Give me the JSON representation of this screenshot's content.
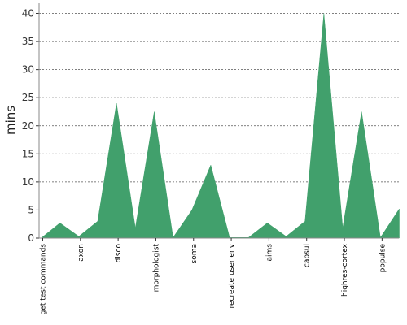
{
  "chart_data": {
    "type": "area",
    "ylabel": "mins",
    "xlabel": "",
    "ylim": [
      0,
      40
    ],
    "yticks": [
      0,
      5,
      10,
      15,
      20,
      25,
      30,
      35,
      40
    ],
    "grid": "horizontal-dashed",
    "fill_color": "#41a06c",
    "categories": [
      "get test commands",
      "axon",
      "disco",
      "morphologist",
      "soma",
      "recreate user env",
      "aims",
      "capsul",
      "highres-cortex",
      "populse"
    ],
    "label_every": 2,
    "points": [
      0,
      2.7,
      0.3,
      3.0,
      24.0,
      1.8,
      22.5,
      0.1,
      5.0,
      13.0,
      0.1,
      0.1,
      2.7,
      0.3,
      3.0,
      40.0,
      1.8,
      22.5,
      0.1,
      5.2
    ]
  }
}
